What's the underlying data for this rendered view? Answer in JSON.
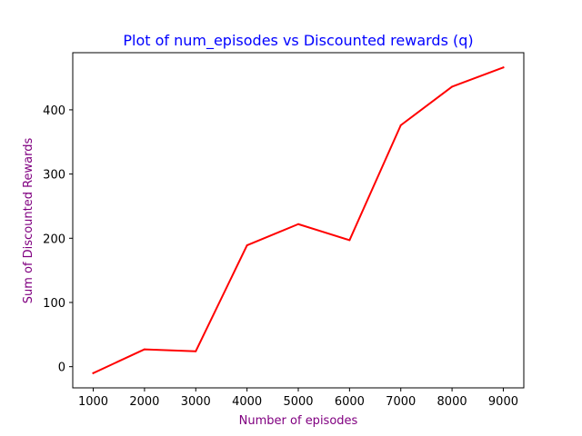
{
  "chart_data": {
    "type": "line",
    "title": "Plot of num_episodes vs Discounted rewards (q)",
    "xlabel": "Number of episodes",
    "ylabel": "Sum of Discounted Rewards",
    "x": [
      1000,
      2000,
      3000,
      4000,
      5000,
      6000,
      7000,
      8000,
      9000
    ],
    "series": [
      {
        "name": "Discounted rewards",
        "values": [
          -10,
          27,
          24,
          189,
          222,
          197,
          376,
          436,
          466
        ]
      }
    ],
    "xlim": [
      600,
      9400
    ],
    "ylim": [
      -33,
      489
    ],
    "xticks": [
      1000,
      2000,
      3000,
      4000,
      5000,
      6000,
      7000,
      8000,
      9000
    ],
    "yticks": [
      0,
      100,
      200,
      300,
      400
    ],
    "grid": false,
    "colors": {
      "line": "#ff0000",
      "title": "#0000ff",
      "axis_labels": "#800080",
      "axes": "#000000"
    }
  }
}
